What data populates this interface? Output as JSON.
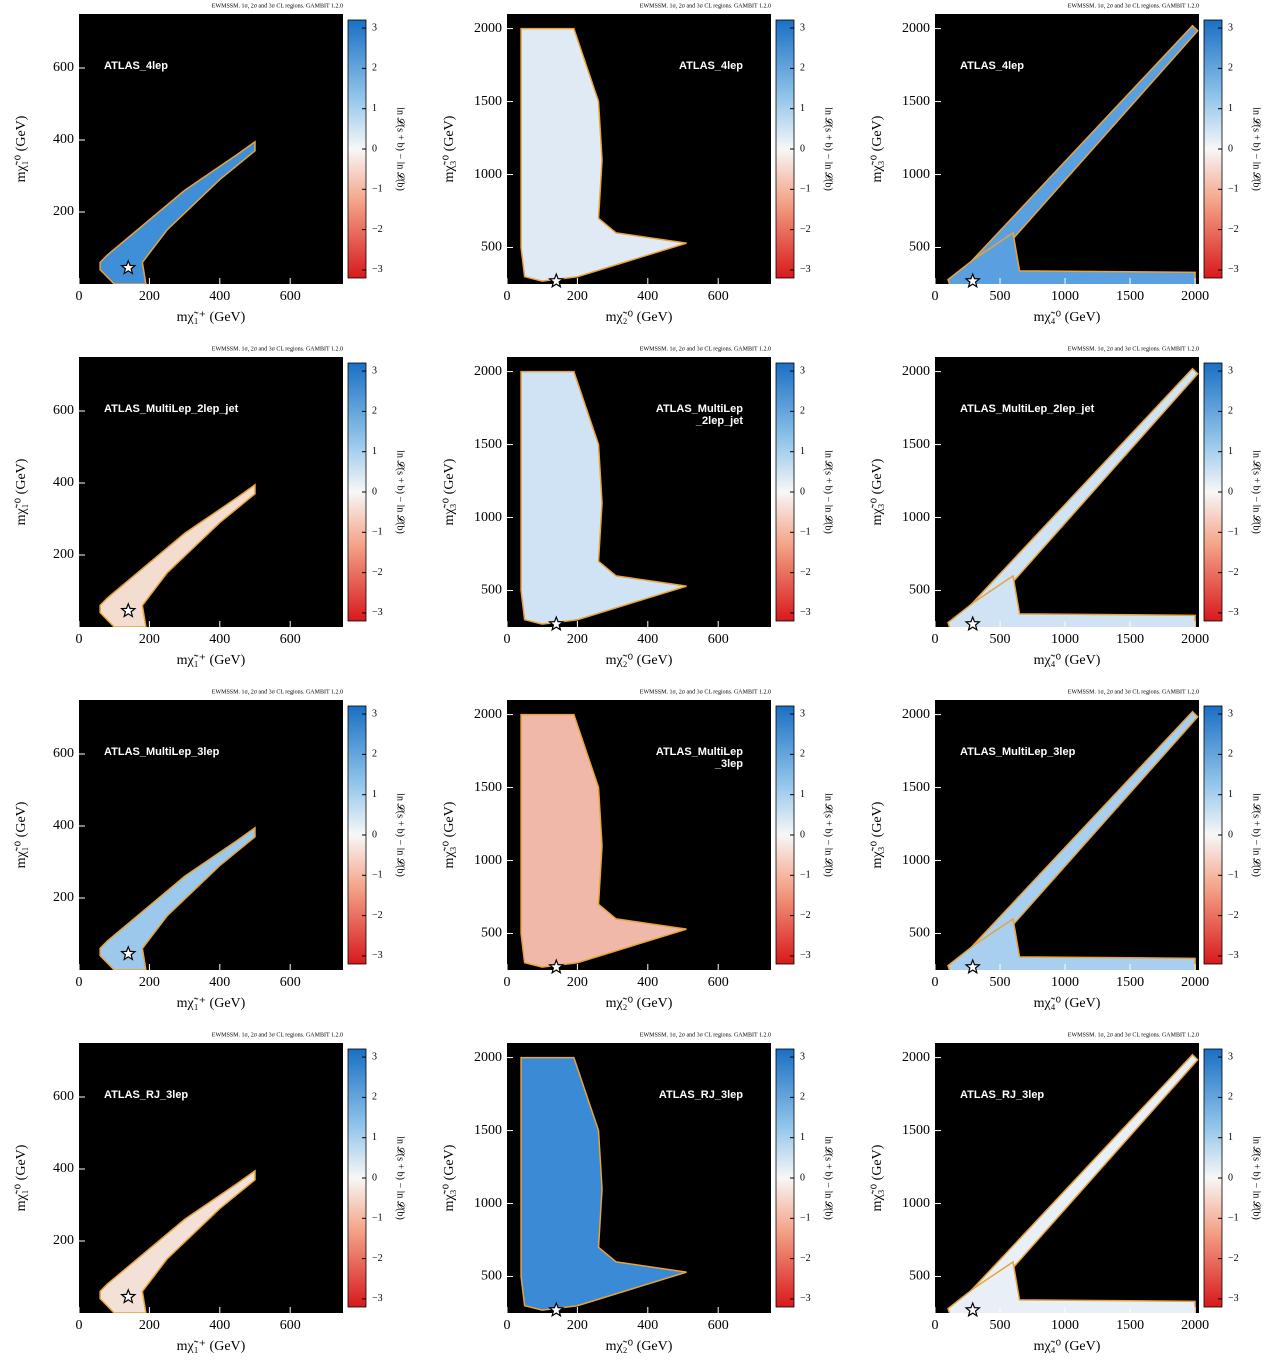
{
  "chart_data": [
    {
      "type": "heatmap",
      "title": "EWMSSM. 1σ, 2σ and 3σ CL regions. GAMBIT 1.2.0",
      "label_lines": [
        "ATLAS_4lep"
      ],
      "xlabel": "mχ̃₁⁺ (GeV)",
      "ylabel": "mχ̃₁⁰ (GeV)",
      "xlim": [
        0,
        750
      ],
      "ylim": [
        0,
        750
      ],
      "xticks": [
        0,
        200,
        400,
        600
      ],
      "yticks": [
        200,
        400,
        600
      ],
      "best_fit": {
        "x": 140,
        "y": 45
      },
      "colorbar": {
        "label": "ln 𝓛(s + b) − ln 𝓛(b)",
        "lim": [
          -3.2,
          3.2
        ],
        "ticks": [
          {
            "value": -3,
            "label": "−3"
          },
          {
            "value": -2,
            "label": "−2"
          },
          {
            "value": -1,
            "label": "−1"
          },
          0,
          1,
          2,
          3
        ]
      }
    },
    {
      "type": "heatmap",
      "title": "EWMSSM. 1σ, 2σ and 3σ CL regions. GAMBIT 1.2.0",
      "label_lines": [
        "ATLAS_4lep"
      ],
      "xlabel": "mχ̃₂⁰ (GeV)",
      "ylabel": "mχ̃₃⁰ (GeV)",
      "xlim": [
        0,
        750
      ],
      "ylim": [
        250,
        2100
      ],
      "xticks": [
        0,
        200,
        400,
        600
      ],
      "yticks": [
        500,
        1000,
        1500,
        2000
      ],
      "best_fit": {
        "x": 140,
        "y": 270
      },
      "colorbar": {
        "label": "ln 𝓛(s + b) − ln 𝓛(b)",
        "lim": [
          -3.2,
          3.2
        ],
        "ticks": [
          {
            "value": -3,
            "label": "−3"
          },
          {
            "value": -2,
            "label": "−2"
          },
          {
            "value": -1,
            "label": "−1"
          },
          0,
          1,
          2,
          3
        ]
      }
    },
    {
      "type": "heatmap",
      "title": "EWMSSM. 1σ, 2σ and 3σ CL regions. GAMBIT 1.2.0",
      "label_lines": [
        "ATLAS_4lep"
      ],
      "xlabel": "mχ̃₄⁰ (GeV)",
      "ylabel": "mχ̃₃⁰ (GeV)",
      "xlim": [
        0,
        2030
      ],
      "ylim": [
        250,
        2100
      ],
      "xticks": [
        0,
        500,
        1000,
        1500,
        2000
      ],
      "yticks": [
        500,
        1000,
        1500,
        2000
      ],
      "best_fit": {
        "x": 290,
        "y": 270
      },
      "colorbar": {
        "label": "ln 𝓛(s + b) − ln 𝓛(b)",
        "lim": [
          -3.2,
          3.2
        ],
        "ticks": [
          {
            "value": -3,
            "label": "−3"
          },
          {
            "value": -2,
            "label": "−2"
          },
          {
            "value": -1,
            "label": "−1"
          },
          0,
          1,
          2,
          3
        ]
      }
    },
    {
      "type": "heatmap",
      "title": "EWMSSM. 1σ, 2σ and 3σ CL regions. GAMBIT 1.2.0",
      "label_lines": [
        "ATLAS_MultiLep_2lep_jet"
      ],
      "xlabel": "mχ̃₁⁺ (GeV)",
      "ylabel": "mχ̃₁⁰ (GeV)",
      "xlim": [
        0,
        750
      ],
      "ylim": [
        0,
        750
      ],
      "xticks": [
        0,
        200,
        400,
        600
      ],
      "yticks": [
        200,
        400,
        600
      ],
      "best_fit": {
        "x": 140,
        "y": 45
      },
      "colorbar": {
        "label": "ln 𝓛(s + b) − ln 𝓛(b)",
        "lim": [
          -3.2,
          3.2
        ],
        "ticks": [
          {
            "value": -3,
            "label": "−3"
          },
          {
            "value": -2,
            "label": "−2"
          },
          {
            "value": -1,
            "label": "−1"
          },
          0,
          1,
          2,
          3
        ]
      }
    },
    {
      "type": "heatmap",
      "title": "EWMSSM. 1σ, 2σ and 3σ CL regions. GAMBIT 1.2.0",
      "label_lines": [
        "ATLAS_MultiLep",
        "_2lep_jet"
      ],
      "xlabel": "mχ̃₂⁰ (GeV)",
      "ylabel": "mχ̃₃⁰ (GeV)",
      "xlim": [
        0,
        750
      ],
      "ylim": [
        250,
        2100
      ],
      "xticks": [
        0,
        200,
        400,
        600
      ],
      "yticks": [
        500,
        1000,
        1500,
        2000
      ],
      "best_fit": {
        "x": 140,
        "y": 270
      },
      "colorbar": {
        "label": "ln 𝓛(s + b) − ln 𝓛(b)",
        "lim": [
          -3.2,
          3.2
        ],
        "ticks": [
          {
            "value": -3,
            "label": "−3"
          },
          {
            "value": -2,
            "label": "−2"
          },
          {
            "value": -1,
            "label": "−1"
          },
          0,
          1,
          2,
          3
        ]
      }
    },
    {
      "type": "heatmap",
      "title": "EWMSSM. 1σ, 2σ and 3σ CL regions. GAMBIT 1.2.0",
      "label_lines": [
        "ATLAS_MultiLep_2lep_jet"
      ],
      "xlabel": "mχ̃₄⁰ (GeV)",
      "ylabel": "mχ̃₃⁰ (GeV)",
      "xlim": [
        0,
        2030
      ],
      "ylim": [
        250,
        2100
      ],
      "xticks": [
        0,
        500,
        1000,
        1500,
        2000
      ],
      "yticks": [
        500,
        1000,
        1500,
        2000
      ],
      "best_fit": {
        "x": 290,
        "y": 270
      },
      "colorbar": {
        "label": "ln 𝓛(s + b) − ln 𝓛(b)",
        "lim": [
          -3.2,
          3.2
        ],
        "ticks": [
          {
            "value": -3,
            "label": "−3"
          },
          {
            "value": -2,
            "label": "−2"
          },
          {
            "value": -1,
            "label": "−1"
          },
          0,
          1,
          2,
          3
        ]
      }
    },
    {
      "type": "heatmap",
      "title": "EWMSSM. 1σ, 2σ and 3σ CL regions. GAMBIT 1.2.0",
      "label_lines": [
        "ATLAS_MultiLep_3lep"
      ],
      "xlabel": "mχ̃₁⁺ (GeV)",
      "ylabel": "mχ̃₁⁰ (GeV)",
      "xlim": [
        0,
        750
      ],
      "ylim": [
        0,
        750
      ],
      "xticks": [
        0,
        200,
        400,
        600
      ],
      "yticks": [
        200,
        400,
        600
      ],
      "best_fit": {
        "x": 140,
        "y": 45
      },
      "colorbar": {
        "label": "ln 𝓛(s + b) − ln 𝓛(b)",
        "lim": [
          -3.2,
          3.2
        ],
        "ticks": [
          {
            "value": -3,
            "label": "−3"
          },
          {
            "value": -2,
            "label": "−2"
          },
          {
            "value": -1,
            "label": "−1"
          },
          0,
          1,
          2,
          3
        ]
      }
    },
    {
      "type": "heatmap",
      "title": "EWMSSM. 1σ, 2σ and 3σ CL regions. GAMBIT 1.2.0",
      "label_lines": [
        "ATLAS_MultiLep",
        "_3lep"
      ],
      "xlabel": "mχ̃₂⁰ (GeV)",
      "ylabel": "mχ̃₃⁰ (GeV)",
      "xlim": [
        0,
        750
      ],
      "ylim": [
        250,
        2100
      ],
      "xticks": [
        0,
        200,
        400,
        600
      ],
      "yticks": [
        500,
        1000,
        1500,
        2000
      ],
      "best_fit": {
        "x": 140,
        "y": 270
      },
      "colorbar": {
        "label": "ln 𝓛(s + b) − ln 𝓛(b)",
        "lim": [
          -3.2,
          3.2
        ],
        "ticks": [
          {
            "value": -3,
            "label": "−3"
          },
          {
            "value": -2,
            "label": "−2"
          },
          {
            "value": -1,
            "label": "−1"
          },
          0,
          1,
          2,
          3
        ]
      }
    },
    {
      "type": "heatmap",
      "title": "EWMSSM. 1σ, 2σ and 3σ CL regions. GAMBIT 1.2.0",
      "label_lines": [
        "ATLAS_MultiLep_3lep"
      ],
      "xlabel": "mχ̃₄⁰ (GeV)",
      "ylabel": "mχ̃₃⁰ (GeV)",
      "xlim": [
        0,
        2030
      ],
      "ylim": [
        250,
        2100
      ],
      "xticks": [
        0,
        500,
        1000,
        1500,
        2000
      ],
      "yticks": [
        500,
        1000,
        1500,
        2000
      ],
      "best_fit": {
        "x": 290,
        "y": 270
      },
      "colorbar": {
        "label": "ln 𝓛(s + b) − ln 𝓛(b)",
        "lim": [
          -3.2,
          3.2
        ],
        "ticks": [
          {
            "value": -3,
            "label": "−3"
          },
          {
            "value": -2,
            "label": "−2"
          },
          {
            "value": -1,
            "label": "−1"
          },
          0,
          1,
          2,
          3
        ]
      }
    },
    {
      "type": "heatmap",
      "title": "EWMSSM. 1σ, 2σ and 3σ CL regions. GAMBIT 1.2.0",
      "label_lines": [
        "ATLAS_RJ_3lep"
      ],
      "xlabel": "mχ̃₁⁺ (GeV)",
      "ylabel": "mχ̃₁⁰ (GeV)",
      "xlim": [
        0,
        750
      ],
      "ylim": [
        0,
        750
      ],
      "xticks": [
        0,
        200,
        400,
        600
      ],
      "yticks": [
        200,
        400,
        600
      ],
      "best_fit": {
        "x": 140,
        "y": 45
      },
      "colorbar": {
        "label": "ln 𝓛(s + b) − ln 𝓛(b)",
        "lim": [
          -3.2,
          3.2
        ],
        "ticks": [
          {
            "value": -3,
            "label": "−3"
          },
          {
            "value": -2,
            "label": "−2"
          },
          {
            "value": -1,
            "label": "−1"
          },
          0,
          1,
          2,
          3
        ]
      }
    },
    {
      "type": "heatmap",
      "title": "EWMSSM. 1σ, 2σ and 3σ CL regions. GAMBIT 1.2.0",
      "label_lines": [
        "ATLAS_RJ_3lep"
      ],
      "xlabel": "mχ̃₂⁰ (GeV)",
      "ylabel": "mχ̃₃⁰ (GeV)",
      "xlim": [
        0,
        750
      ],
      "ylim": [
        250,
        2100
      ],
      "xticks": [
        0,
        200,
        400,
        600
      ],
      "yticks": [
        500,
        1000,
        1500,
        2000
      ],
      "best_fit": {
        "x": 140,
        "y": 270
      },
      "colorbar": {
        "label": "ln 𝓛(s + b) − ln 𝓛(b)",
        "lim": [
          -3.2,
          3.2
        ],
        "ticks": [
          {
            "value": -3,
            "label": "−3"
          },
          {
            "value": -2,
            "label": "−2"
          },
          {
            "value": -1,
            "label": "−1"
          },
          0,
          1,
          2,
          3
        ]
      }
    },
    {
      "type": "heatmap",
      "title": "EWMSSM. 1σ, 2σ and 3σ CL regions. GAMBIT 1.2.0",
      "label_lines": [
        "ATLAS_RJ_3lep"
      ],
      "xlabel": "mχ̃₄⁰ (GeV)",
      "ylabel": "mχ̃₃⁰ (GeV)",
      "xlim": [
        0,
        2030
      ],
      "ylim": [
        250,
        2100
      ],
      "xticks": [
        0,
        500,
        1000,
        1500,
        2000
      ],
      "yticks": [
        500,
        1000,
        1500,
        2000
      ],
      "best_fit": {
        "x": 290,
        "y": 270
      },
      "colorbar": {
        "label": "ln 𝓛(s + b) − ln 𝓛(b)",
        "lim": [
          -3.2,
          3.2
        ],
        "ticks": [
          {
            "value": -3,
            "label": "−3"
          },
          {
            "value": -2,
            "label": "−2"
          },
          {
            "value": -1,
            "label": "−1"
          },
          0,
          1,
          2,
          3
        ]
      }
    }
  ]
}
